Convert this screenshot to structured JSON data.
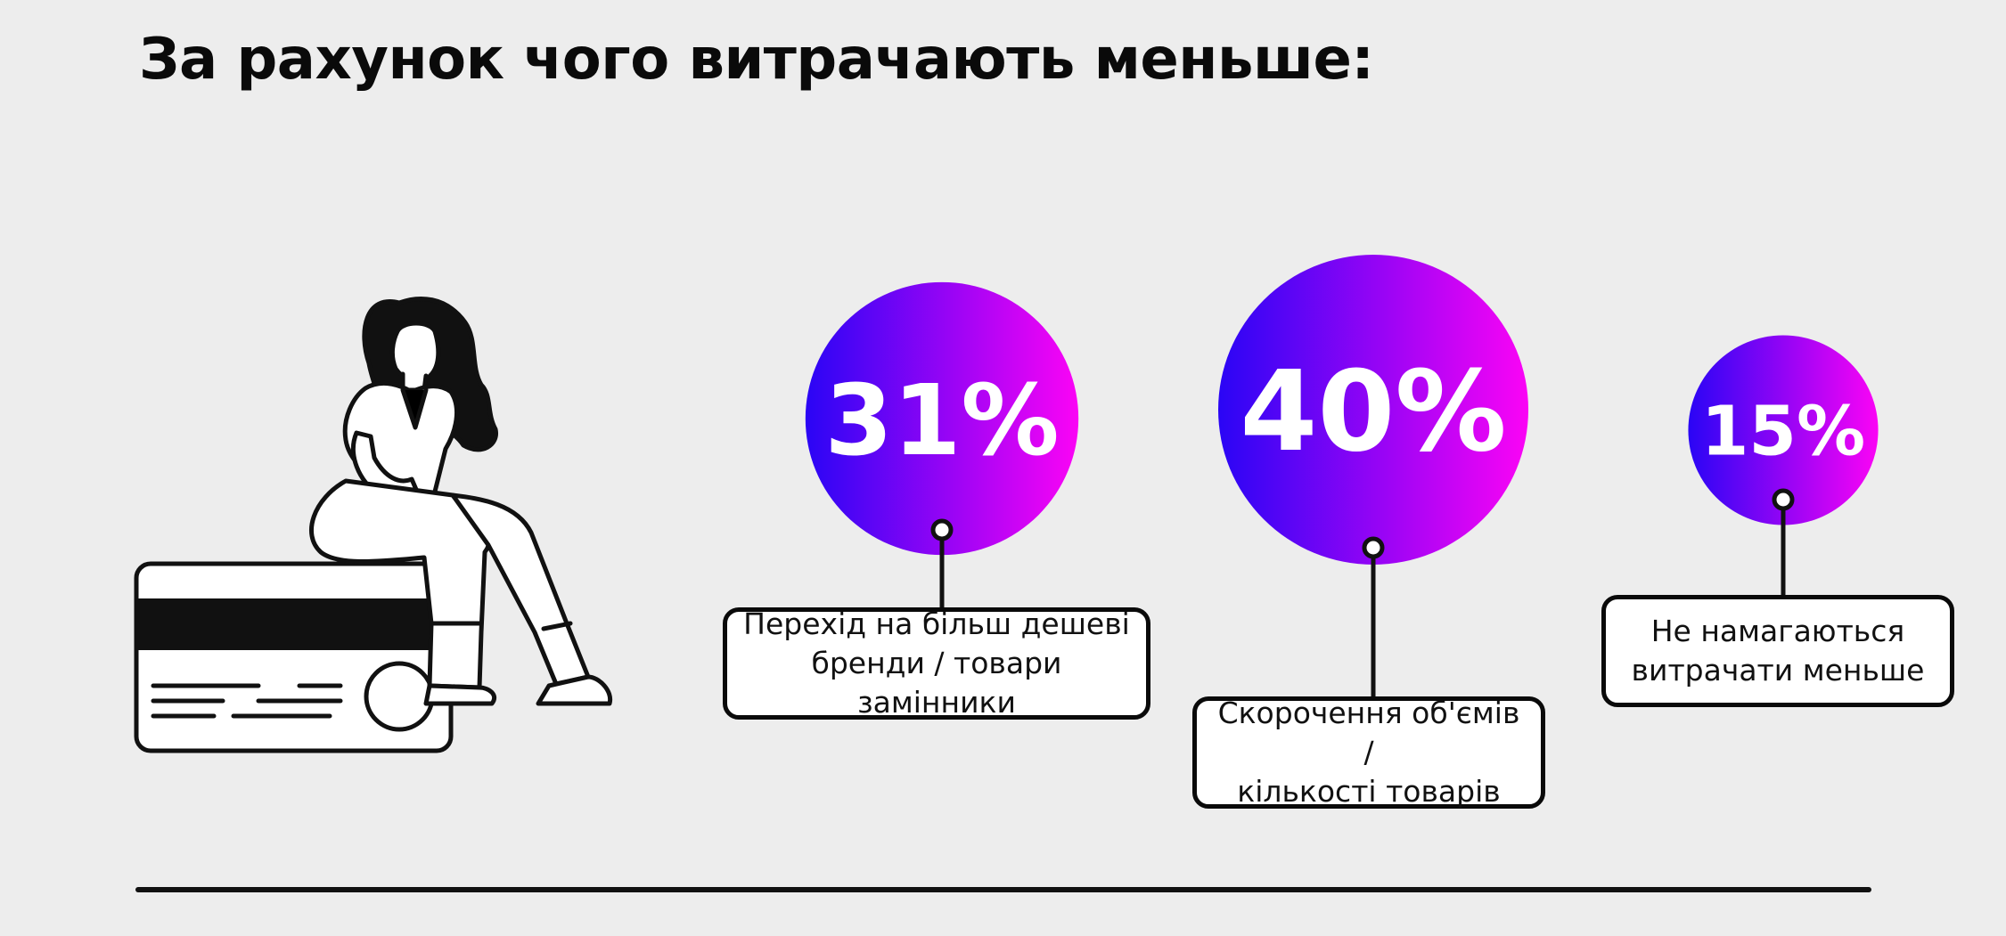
{
  "title": "За рахунок чого витрачають меньше:",
  "colors": {
    "gradient_start": "#2a05f5",
    "gradient_end": "#fb04f5",
    "ink": "#0a0a0a",
    "background": "#ededed"
  },
  "icons": [
    "woman-sitting-illustration",
    "credit-card-illustration"
  ],
  "chart_data": {
    "type": "bubble",
    "title": "За рахунок чого витрачають меньше:",
    "unit": "%",
    "items": [
      {
        "label": "Перехід на більш дешеві\nбренди / товари замінники",
        "value": 31,
        "display": "31%"
      },
      {
        "label": "Скорочення об'ємів /\nкількості товарів",
        "value": 40,
        "display": "40%"
      },
      {
        "label": "Не намагаються\nвитрачати меньше",
        "value": 15,
        "display": "15%"
      }
    ]
  }
}
